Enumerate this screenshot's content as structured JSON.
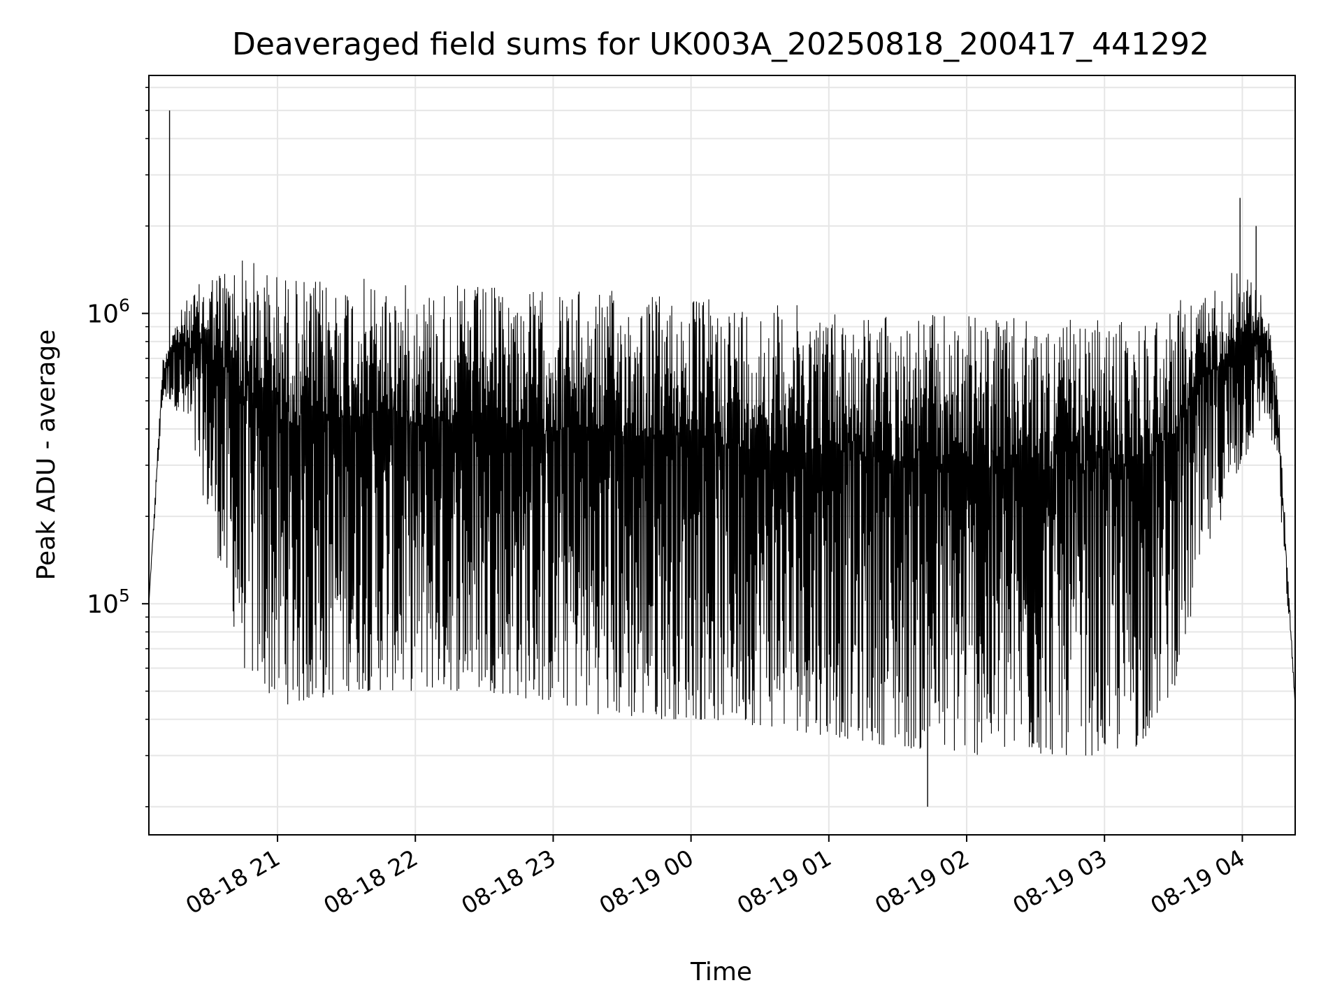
{
  "chart_data": {
    "type": "line",
    "title": "Deaveraged field sums for UK003A_20250818_200417_441292",
    "xlabel": "Time",
    "ylabel": "Peak ADU - average",
    "yscale": "log",
    "grid": true,
    "line_color": "#000000",
    "grid_color": "#e6e6e6",
    "x_tick_labels": [
      "08-18 21",
      "08-18 22",
      "08-18 23",
      "08-19 00",
      "08-19 01",
      "08-19 02",
      "08-19 03",
      "08-19 04"
    ],
    "y_tick_labels": [
      {
        "base": "10",
        "exp": "5",
        "value": 100000
      },
      {
        "base": "10",
        "exp": "6",
        "value": 1000000
      }
    ],
    "xlim": [
      "2025-08-18 20:04",
      "2025-08-19 04:23"
    ],
    "ylim": [
      16000,
      6600000
    ],
    "envelope": {
      "description_of_values": "approximate per-interval peak and trough of the oscillating signal",
      "times": [
        "2025-08-18 20:04",
        "2025-08-18 20:10",
        "2025-08-18 20:14",
        "2025-08-18 20:20",
        "2025-08-18 20:30",
        "2025-08-18 20:45",
        "2025-08-18 21:00",
        "2025-08-18 21:15",
        "2025-08-18 21:30",
        "2025-08-18 21:45",
        "2025-08-18 22:00",
        "2025-08-18 22:30",
        "2025-08-18 23:00",
        "2025-08-18 23:30",
        "2025-08-19 00:00",
        "2025-08-19 00:30",
        "2025-08-19 01:00",
        "2025-08-19 01:30",
        "2025-08-19 02:00",
        "2025-08-19 02:30",
        "2025-08-19 03:00",
        "2025-08-19 03:15",
        "2025-08-19 03:30",
        "2025-08-19 03:45",
        "2025-08-19 04:00",
        "2025-08-19 04:10",
        "2025-08-19 04:15",
        "2025-08-19 04:23"
      ],
      "upper": [
        100000,
        700000,
        900000,
        1100000,
        1400000,
        1600000,
        1400000,
        1300000,
        1350000,
        1300000,
        1250000,
        1250000,
        1200000,
        1200000,
        1150000,
        1100000,
        1050000,
        1000000,
        1000000,
        950000,
        950000,
        950000,
        1100000,
        1200000,
        1500000,
        1100000,
        650000,
        45000
      ],
      "lower": [
        100000,
        500000,
        500000,
        400000,
        200000,
        60000,
        45000,
        45000,
        50000,
        50000,
        50000,
        50000,
        45000,
        40000,
        40000,
        38000,
        35000,
        32000,
        30000,
        30000,
        30000,
        32000,
        50000,
        150000,
        300000,
        450000,
        300000,
        45000
      ]
    },
    "spikes": [
      {
        "time": "2025-08-18 20:13",
        "value": 5000000
      },
      {
        "time": "2025-08-19 03:59",
        "value": 2500000
      },
      {
        "time": "2025-08-19 04:06",
        "value": 2000000
      },
      {
        "time": "2025-08-19 01:43",
        "value": 20000
      }
    ]
  }
}
